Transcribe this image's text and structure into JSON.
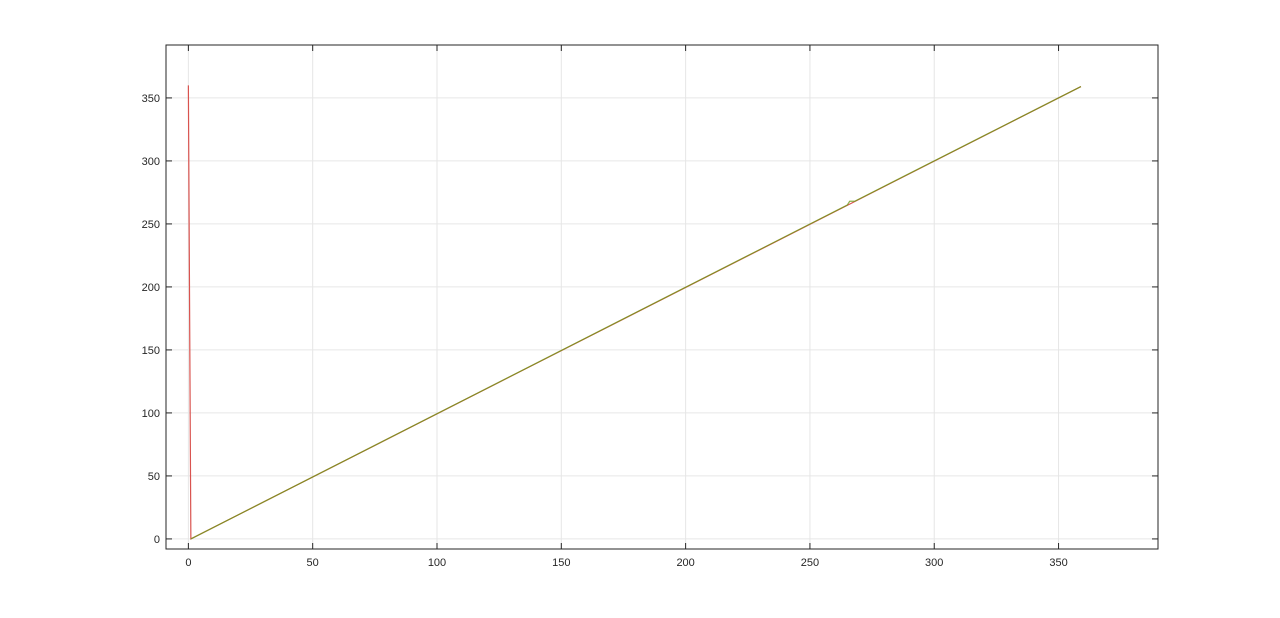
{
  "chart_data": {
    "type": "line",
    "title": "",
    "xlabel": "",
    "ylabel": "",
    "xlim": [
      -9,
      390
    ],
    "ylim": [
      -8,
      392
    ],
    "xticks": [
      0,
      50,
      100,
      150,
      200,
      250,
      300,
      350
    ],
    "yticks": [
      0,
      50,
      100,
      150,
      200,
      250,
      300,
      350
    ],
    "grid": true,
    "series": [
      {
        "color": "#d9534f",
        "points": [
          [
            0,
            360
          ],
          [
            1,
            0
          ],
          [
            359,
            359
          ]
        ]
      },
      {
        "color": "#6f9a1a",
        "points": [
          [
            1,
            0
          ],
          [
            265,
            265
          ],
          [
            266,
            268
          ],
          [
            268,
            268
          ],
          [
            320,
            320
          ],
          [
            359,
            359
          ]
        ]
      }
    ]
  }
}
